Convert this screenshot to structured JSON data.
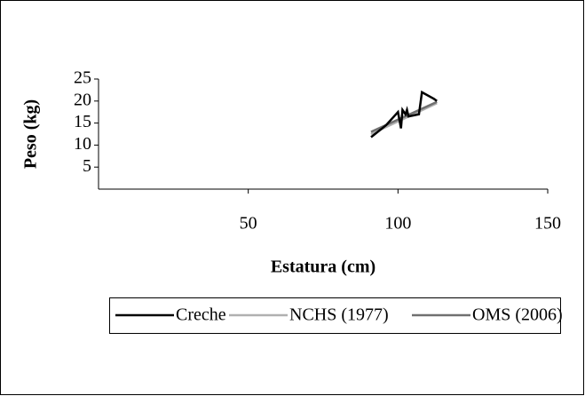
{
  "chart_data": {
    "type": "line",
    "x_label": "Estatura (cm)",
    "y_label": "Peso (kg)",
    "xlim": [
      0,
      150
    ],
    "xticks": [
      50,
      100,
      150
    ],
    "ylim": [
      0,
      25
    ],
    "yticks": [
      5,
      10,
      15,
      20,
      25
    ],
    "legend": "bottom",
    "series": [
      {
        "name": "Creche",
        "color": "#000000",
        "x": [
          91,
          96,
          100,
          101,
          101.5,
          102.5,
          103,
          103.5,
          107,
          108,
          112,
          113
        ],
        "values": [
          11.8,
          14.5,
          17.5,
          13.8,
          18,
          17,
          18,
          16.5,
          17,
          22,
          20.5,
          20
        ]
      },
      {
        "name": "NCHS (1977)",
        "color": "#b0b0b0",
        "x": [
          91,
          113
        ],
        "values": [
          12.5,
          19.5
        ]
      },
      {
        "name": "OMS (2006)",
        "color": "#707070",
        "x": [
          91,
          113
        ],
        "values": [
          13,
          19.8
        ]
      }
    ]
  }
}
